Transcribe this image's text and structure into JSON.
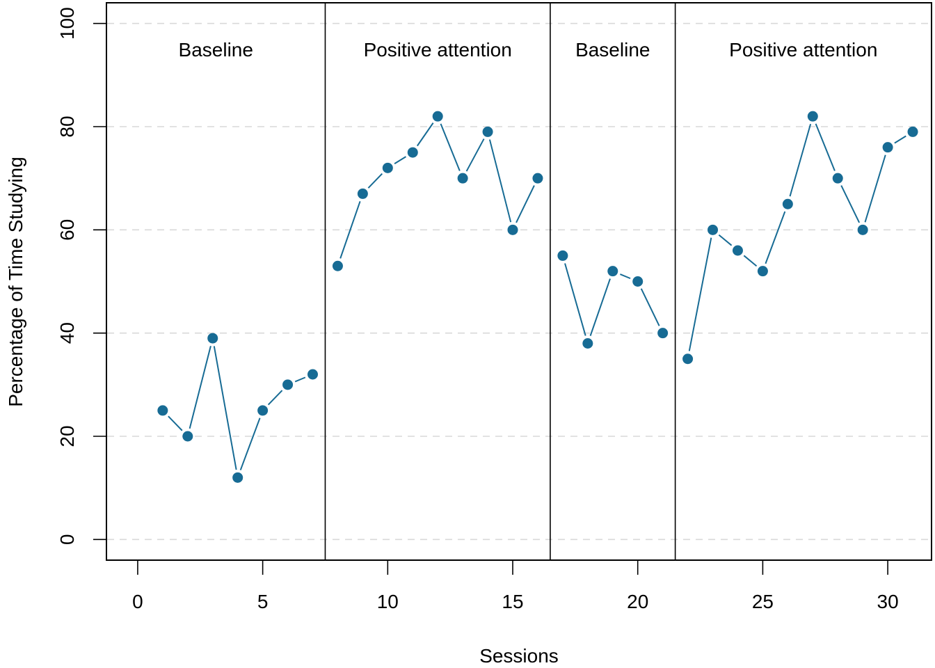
{
  "chart_data": {
    "type": "line",
    "title": "",
    "xlabel": "Sessions",
    "ylabel": "Percentage of Time Studying",
    "xlim": [
      -1.25,
      31.75
    ],
    "ylim": [
      -4,
      104
    ],
    "xticks": [
      0,
      5,
      10,
      15,
      20,
      25,
      30
    ],
    "yticks": [
      0,
      20,
      40,
      60,
      80,
      100
    ],
    "grid": "horizontal dashed",
    "line_color": "#176b94",
    "phases": [
      {
        "label": "Baseline",
        "start": -1.25,
        "end": 7.5
      },
      {
        "label": "Positive attention",
        "start": 7.5,
        "end": 16.5
      },
      {
        "label": "Baseline",
        "start": 16.5,
        "end": 21.5
      },
      {
        "label": "Positive attention",
        "start": 21.5,
        "end": 31.75
      }
    ],
    "series": [
      {
        "x": [
          1,
          2,
          3,
          4,
          5,
          6,
          7
        ],
        "values": [
          25,
          20,
          39,
          12,
          25,
          30,
          32
        ]
      },
      {
        "x": [
          8,
          9,
          10,
          11,
          12,
          13,
          14,
          15,
          16
        ],
        "values": [
          53,
          67,
          72,
          75,
          82,
          70,
          79,
          60,
          70
        ]
      },
      {
        "x": [
          17,
          18,
          19,
          20,
          21
        ],
        "values": [
          55,
          38,
          52,
          50,
          40
        ]
      },
      {
        "x": [
          22,
          23,
          24,
          25,
          26,
          27,
          28,
          29,
          30,
          31
        ],
        "values": [
          35,
          60,
          56,
          52,
          65,
          82,
          70,
          60,
          76,
          79
        ]
      }
    ]
  }
}
